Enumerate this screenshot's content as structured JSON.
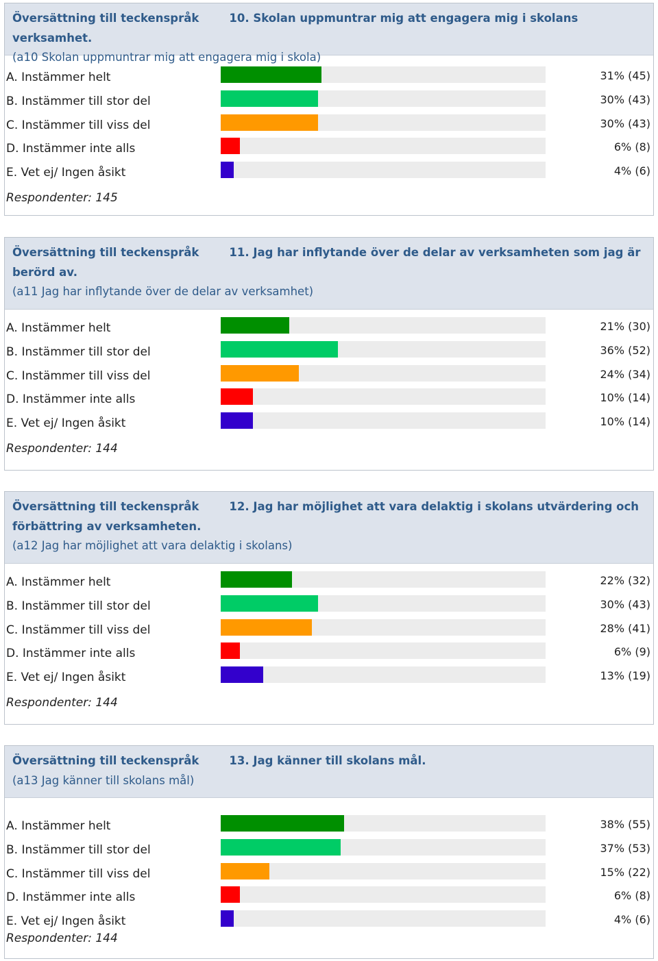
{
  "page": {
    "header_link": "Översättning till teckenspråk"
  },
  "chart_data": [
    {
      "type": "bar",
      "title": "10. Skolan uppmuntrar mig att engagera mig i skolans verksamhet.",
      "subtitle": "(a10 Skolan uppmuntrar mig att engagera mig i skola)",
      "categories": [
        "A. Instämmer helt",
        "B. Instämmer till stor del",
        "C. Instämmer till viss del",
        "D. Instämmer inte alls",
        "E. Vet ej/ Ingen åsikt"
      ],
      "percent": [
        31,
        30,
        30,
        6,
        4
      ],
      "counts": [
        45,
        43,
        43,
        8,
        6
      ],
      "value_labels": [
        "31% (45)",
        "30% (43)",
        "30% (43)",
        "6% (8)",
        "4% (6)"
      ],
      "respondents_label": "Respondenter: 145",
      "xlim": [
        0,
        100
      ]
    },
    {
      "type": "bar",
      "title": "11. Jag har inflytande över de delar av verksamheten som jag är berörd av.",
      "subtitle": "(a11 Jag har inflytande över de delar av verksamhet)",
      "categories": [
        "A. Instämmer helt",
        "B. Instämmer till stor del",
        "C. Instämmer till viss del",
        "D. Instämmer inte alls",
        "E. Vet ej/ Ingen åsikt"
      ],
      "percent": [
        21,
        36,
        24,
        10,
        10
      ],
      "counts": [
        30,
        52,
        34,
        14,
        14
      ],
      "value_labels": [
        "21% (30)",
        "36% (52)",
        "24% (34)",
        "10% (14)",
        "10% (14)"
      ],
      "respondents_label": "Respondenter: 144",
      "xlim": [
        0,
        100
      ]
    },
    {
      "type": "bar",
      "title": "12. Jag har möjlighet att vara delaktig i skolans utvärdering och förbättring av verksamheten.",
      "subtitle": "(a12 Jag har möjlighet att vara delaktig i skolans)",
      "categories": [
        "A. Instämmer helt",
        "B. Instämmer till stor del",
        "C. Instämmer till viss del",
        "D. Instämmer inte alls",
        "E. Vet ej/ Ingen åsikt"
      ],
      "percent": [
        22,
        30,
        28,
        6,
        13
      ],
      "counts": [
        32,
        43,
        41,
        9,
        19
      ],
      "value_labels": [
        "22% (32)",
        "30% (43)",
        "28% (41)",
        "6% (9)",
        "13% (19)"
      ],
      "respondents_label": "Respondenter: 144",
      "xlim": [
        0,
        100
      ]
    },
    {
      "type": "bar",
      "title": "13. Jag känner till skolans mål.",
      "subtitle": "(a13 Jag känner till skolans mål)",
      "categories": [
        "A. Instämmer helt",
        "B. Instämmer till stor del",
        "C. Instämmer till viss del",
        "D. Instämmer inte alls",
        "E. Vet ej/ Ingen åsikt"
      ],
      "percent": [
        38,
        37,
        15,
        6,
        4
      ],
      "counts": [
        55,
        53,
        22,
        8,
        6
      ],
      "value_labels": [
        "38% (55)",
        "37% (53)",
        "15% (22)",
        "6% (8)",
        "4% (6)"
      ],
      "respondents_label": "Respondenter: 144",
      "xlim": [
        0,
        100
      ]
    }
  ],
  "colors": {
    "bar_colors": [
      "#008f00",
      "#00cc66",
      "#ff9900",
      "#ff0000",
      "#3300cc"
    ],
    "track": "#ececec",
    "header_bg": "#dde3ec",
    "header_text": "#2f5b8a"
  }
}
